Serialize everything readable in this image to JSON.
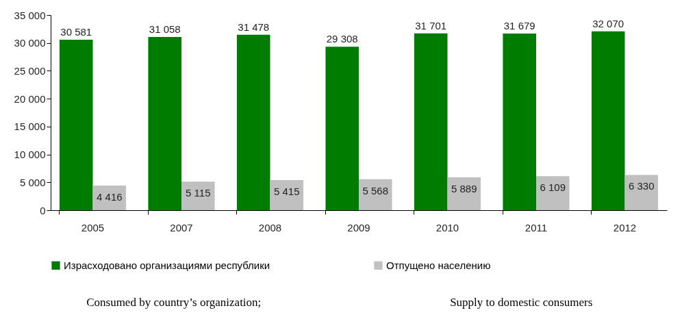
{
  "chart_data": {
    "type": "bar",
    "categories": [
      "2005",
      "2007",
      "2008",
      "2009",
      "2010",
      "2011",
      "2012"
    ],
    "series": [
      {
        "name": "Израсходовано организациями республики",
        "color": "#007d00",
        "values": [
          30581,
          31058,
          31478,
          29308,
          31701,
          31679,
          32070
        ],
        "value_labels": [
          "30 581",
          "31 058",
          "31 478",
          "29 308",
          "31 701",
          "31 679",
          "32 070"
        ]
      },
      {
        "name": "Отпущено населению",
        "color": "#c0c0c0",
        "values": [
          4416,
          5115,
          5415,
          5568,
          5889,
          6109,
          6330
        ],
        "value_labels": [
          "4 416",
          "5 115",
          "5 415",
          "5 568",
          "5 889",
          "6 109",
          "6 330"
        ]
      }
    ],
    "ylim": [
      0,
      35000
    ],
    "yticks": [
      {
        "value": 0,
        "label": "0"
      },
      {
        "value": 5000,
        "label": "5 000"
      },
      {
        "value": 10000,
        "label": "10 000"
      },
      {
        "value": 15000,
        "label": "15 000"
      },
      {
        "value": 20000,
        "label": "20 000"
      },
      {
        "value": 25000,
        "label": "25 000"
      },
      {
        "value": 30000,
        "label": "30 000"
      },
      {
        "value": 35000,
        "label": "35 000"
      }
    ],
    "grid": false,
    "legend": "bottom",
    "annotations": [
      "Consumed by country’s organization;",
      "Supply to domestic consumers"
    ]
  }
}
